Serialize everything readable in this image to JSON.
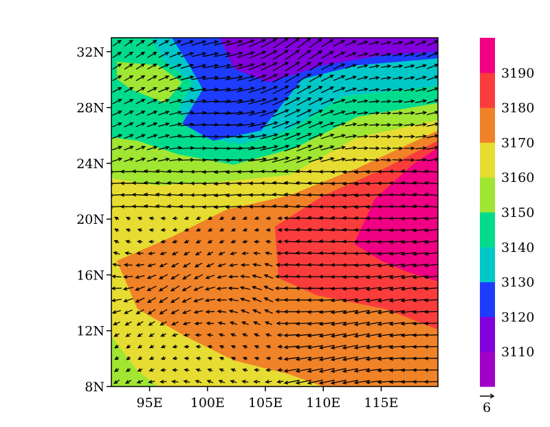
{
  "map": {
    "xlim": [
      91.7,
      119.9
    ],
    "ylim": [
      8,
      33
    ],
    "yticks": [
      {
        "value": 8,
        "label": "8N"
      },
      {
        "value": 12,
        "label": "12N"
      },
      {
        "value": 16,
        "label": "16N"
      },
      {
        "value": 20,
        "label": "20N"
      },
      {
        "value": 24,
        "label": "24N"
      },
      {
        "value": 28,
        "label": "28N"
      },
      {
        "value": 32,
        "label": "32N"
      }
    ],
    "xticks": [
      {
        "value": 95,
        "label": "95E"
      },
      {
        "value": 100,
        "label": "100E"
      },
      {
        "value": 105,
        "label": "105E"
      },
      {
        "value": 110,
        "label": "110E"
      },
      {
        "value": 115,
        "label": "115E"
      }
    ],
    "grid": true
  },
  "colorbar": {
    "ticks": [
      3110,
      3120,
      3130,
      3140,
      3150,
      3160,
      3170,
      3180,
      3190
    ],
    "colors": [
      "#a000c8",
      "#8200dc",
      "#1e3cff",
      "#00c8c8",
      "#00dc8c",
      "#a0e632",
      "#e6dc32",
      "#f08228",
      "#fa3c3c",
      "#f00082"
    ]
  },
  "reference_vector": {
    "label": "6"
  }
}
